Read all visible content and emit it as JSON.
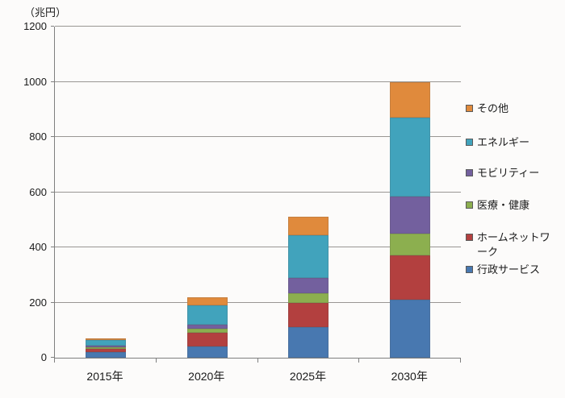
{
  "chart_data": {
    "type": "bar",
    "stacked": true,
    "title": "",
    "ylabel": "（兆円）",
    "xlabel": "",
    "ylim": [
      0,
      1200
    ],
    "yticks": [
      0,
      200,
      400,
      600,
      800,
      1000,
      1200
    ],
    "grid": true,
    "legend_position": "right",
    "categories": [
      "2015年",
      "2020年",
      "2025年",
      "2030年"
    ],
    "series": [
      {
        "name": "行政サービス",
        "color": "#4878B0",
        "values": [
          20,
          40,
          110,
          210
        ]
      },
      {
        "name": "ホームネットワーク",
        "color": "#B3403F",
        "values": [
          13,
          50,
          90,
          160
        ]
      },
      {
        "name": "医療・健康",
        "color": "#8CAF4F",
        "values": [
          4,
          15,
          35,
          80
        ]
      },
      {
        "name": "モビリティー",
        "color": "#73609E",
        "values": [
          8,
          15,
          55,
          135
        ]
      },
      {
        "name": "エネルギー",
        "color": "#41A3BC",
        "values": [
          20,
          70,
          155,
          285
        ]
      },
      {
        "name": "その他",
        "color": "#E08A3C",
        "values": [
          5,
          30,
          65,
          130
        ]
      }
    ],
    "totals": [
      70,
      220,
      510,
      1000
    ],
    "legend_order_top_to_bottom": [
      "その他",
      "エネルギー",
      "モビリティー",
      "医療・健康",
      "ホームネットワーク",
      "行政サービス"
    ]
  },
  "colors": {
    "gridline": "#999693",
    "axis": "#7f7f7f",
    "text": "#1a1a1a",
    "background": "#fcfbfa"
  }
}
